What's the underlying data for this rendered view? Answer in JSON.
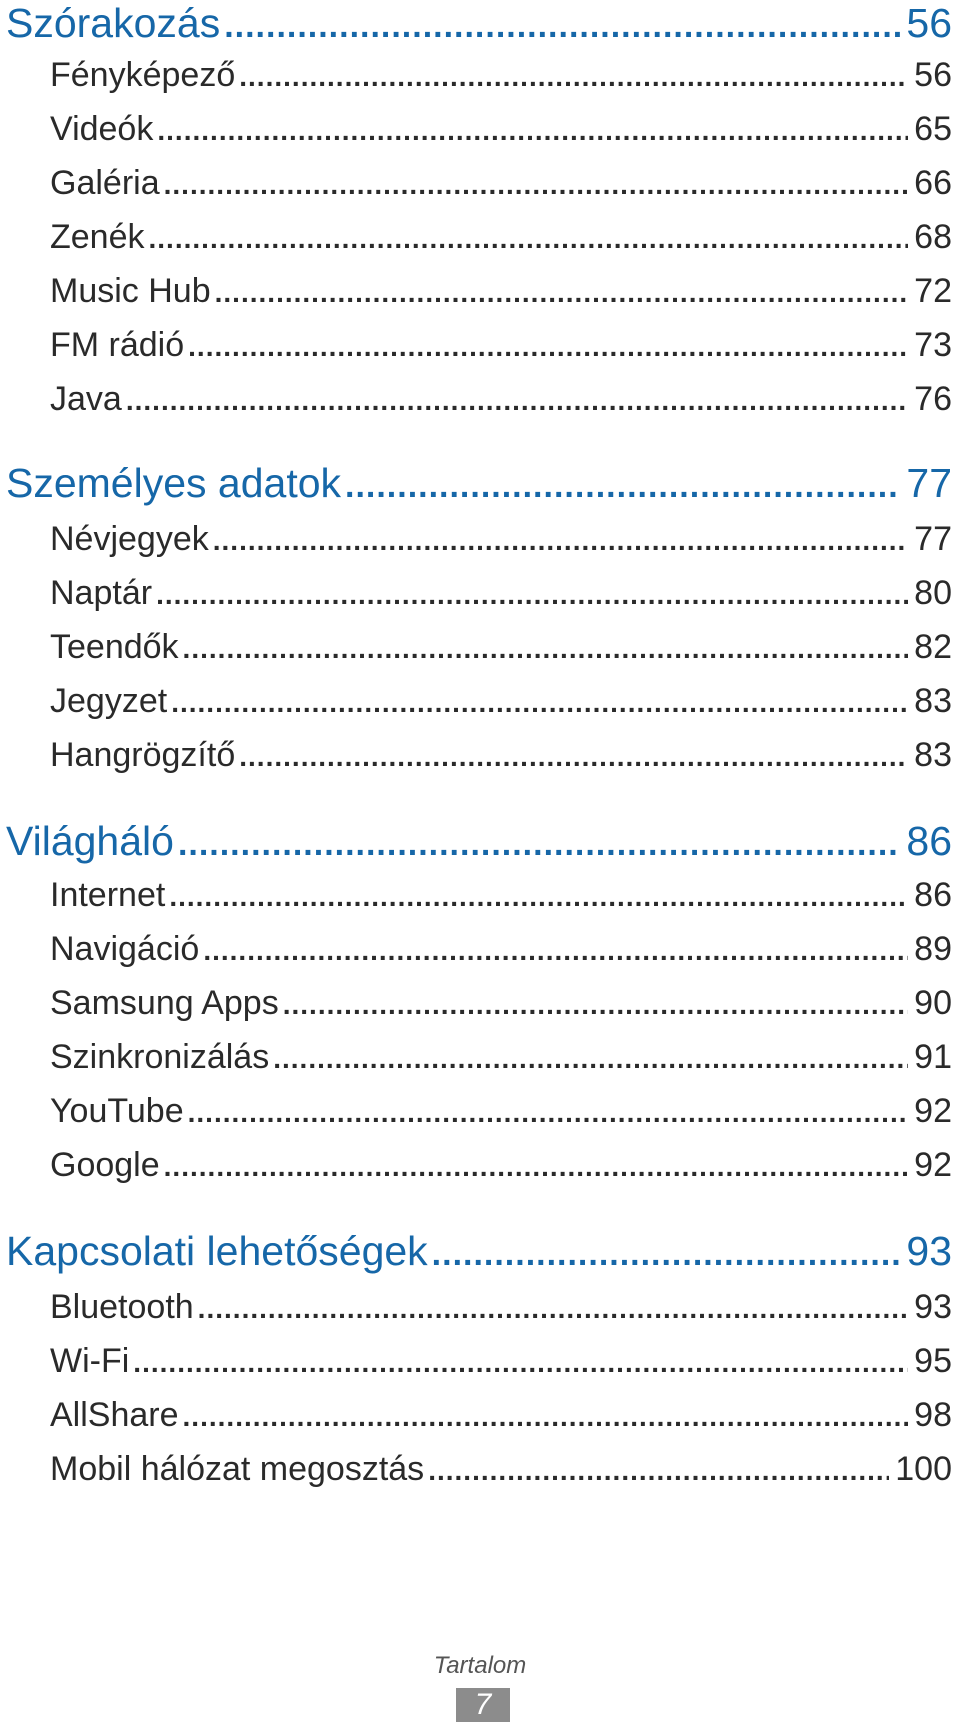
{
  "sections": [
    {
      "title": "Szórakozás",
      "page": "56",
      "items": [
        {
          "label": "Fényképező",
          "page": "56"
        },
        {
          "label": "Videók",
          "page": "65"
        },
        {
          "label": "Galéria",
          "page": "66"
        },
        {
          "label": "Zenék",
          "page": "68"
        },
        {
          "label": "Music Hub",
          "page": "72"
        },
        {
          "label": "FM rádió",
          "page": "73"
        },
        {
          "label": "Java",
          "page": "76"
        }
      ]
    },
    {
      "title": "Személyes adatok",
      "page": "77",
      "items": [
        {
          "label": "Névjegyek",
          "page": "77"
        },
        {
          "label": "Naptár",
          "page": "80"
        },
        {
          "label": "Teendők",
          "page": "82"
        },
        {
          "label": "Jegyzet",
          "page": "83"
        },
        {
          "label": "Hangrögzítő",
          "page": "83"
        }
      ]
    },
    {
      "title": "Világháló",
      "page": "86",
      "items": [
        {
          "label": "Internet",
          "page": "86"
        },
        {
          "label": "Navigáció",
          "page": "89"
        },
        {
          "label": "Samsung Apps",
          "page": "90"
        },
        {
          "label": "Szinkronizálás",
          "page": "91"
        },
        {
          "label": "YouTube",
          "page": "92"
        },
        {
          "label": "Google",
          "page": "92"
        }
      ]
    },
    {
      "title": "Kapcsolati lehetőségek",
      "page": "93",
      "items": [
        {
          "label": "Bluetooth",
          "page": "93"
        },
        {
          "label": "Wi-Fi",
          "page": "95"
        },
        {
          "label": "AllShare",
          "page": "98"
        },
        {
          "label": "Mobil hálózat megosztás",
          "page": "100"
        }
      ]
    }
  ],
  "footer": {
    "label": "Tartalom",
    "page_number": "7"
  }
}
